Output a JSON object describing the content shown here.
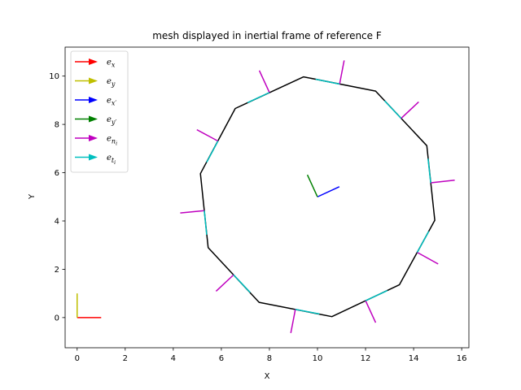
{
  "chart_data": {
    "type": "line",
    "title": "mesh displayed in inertial frame of reference F",
    "xlabel": "X",
    "ylabel": "Y",
    "xlim": [
      -0.5,
      16.3
    ],
    "ylim": [
      -1.25,
      11.2
    ],
    "xticks": [
      0,
      2,
      4,
      6,
      8,
      10,
      12,
      14,
      16
    ],
    "yticks": [
      0,
      2,
      4,
      6,
      8,
      10
    ],
    "grid": false,
    "legend_position": "top-left",
    "legend": [
      {
        "label": "e_x",
        "base": "e",
        "sub": "x",
        "color": "#ff0000"
      },
      {
        "label": "e_y",
        "base": "e",
        "sub": "y",
        "color": "#bfbf00"
      },
      {
        "label": "e_x'",
        "base": "e",
        "sub": "x′",
        "color": "#0000ff"
      },
      {
        "label": "e_y'",
        "base": "e",
        "sub": "y′",
        "color": "#008000"
      },
      {
        "label": "e_n_i",
        "base": "e",
        "sub": "n",
        "subsub": "i",
        "color": "#bf00bf"
      },
      {
        "label": "e_t_i",
        "base": "e",
        "sub": "t",
        "subsub": "i",
        "color": "#00bfbf"
      }
    ],
    "mesh_polygon": [
      [
        9.42,
        9.97
      ],
      [
        12.42,
        9.38
      ],
      [
        14.55,
        7.12
      ],
      [
        14.88,
        4.03
      ],
      [
        13.41,
        1.36
      ],
      [
        10.6,
        0.04
      ],
      [
        7.57,
        0.63
      ],
      [
        5.45,
        2.9
      ],
      [
        5.13,
        5.96
      ],
      [
        6.58,
        8.66
      ]
    ],
    "inertial_frame": {
      "origin": [
        0,
        0
      ],
      "e_x": [
        1,
        0
      ],
      "e_y": [
        0,
        1
      ]
    },
    "body_frame": {
      "origin": [
        10,
        5
      ],
      "e_x_prime": [
        0.91,
        0.42
      ],
      "e_y_prime": [
        -0.42,
        0.91
      ]
    },
    "segment_vectors": [
      {
        "start": [
          10.92,
          9.67
        ],
        "normal": [
          0.19,
          0.98
        ],
        "tangent": [
          -1.0,
          0.2
        ]
      },
      {
        "start": [
          13.48,
          8.25
        ],
        "normal": [
          0.73,
          0.68
        ],
        "tangent": [
          -0.69,
          0.73
        ]
      },
      {
        "start": [
          14.71,
          5.58
        ],
        "normal": [
          1.0,
          0.11
        ],
        "tangent": [
          -0.11,
          1.0
        ]
      },
      {
        "start": [
          14.15,
          2.7
        ],
        "normal": [
          0.87,
          -0.48
        ],
        "tangent": [
          0.48,
          0.87
        ]
      },
      {
        "start": [
          12.0,
          0.7
        ],
        "normal": [
          0.42,
          -0.91
        ],
        "tangent": [
          0.91,
          0.42
        ]
      },
      {
        "start": [
          9.08,
          0.34
        ],
        "normal": [
          -0.19,
          -0.98
        ],
        "tangent": [
          1.0,
          -0.19
        ]
      },
      {
        "start": [
          6.51,
          1.77
        ],
        "normal": [
          -0.73,
          -0.68
        ],
        "tangent": [
          0.69,
          -0.73
        ]
      },
      {
        "start": [
          5.29,
          4.43
        ],
        "normal": [
          -1.0,
          -0.1
        ],
        "tangent": [
          0.1,
          -1.0
        ]
      },
      {
        "start": [
          5.86,
          7.31
        ],
        "normal": [
          -0.88,
          0.47
        ],
        "tangent": [
          -0.47,
          -0.88
        ]
      },
      {
        "start": [
          8.0,
          9.32
        ],
        "normal": [
          -0.42,
          0.91
        ],
        "tangent": [
          -0.91,
          -0.42
        ]
      }
    ]
  }
}
